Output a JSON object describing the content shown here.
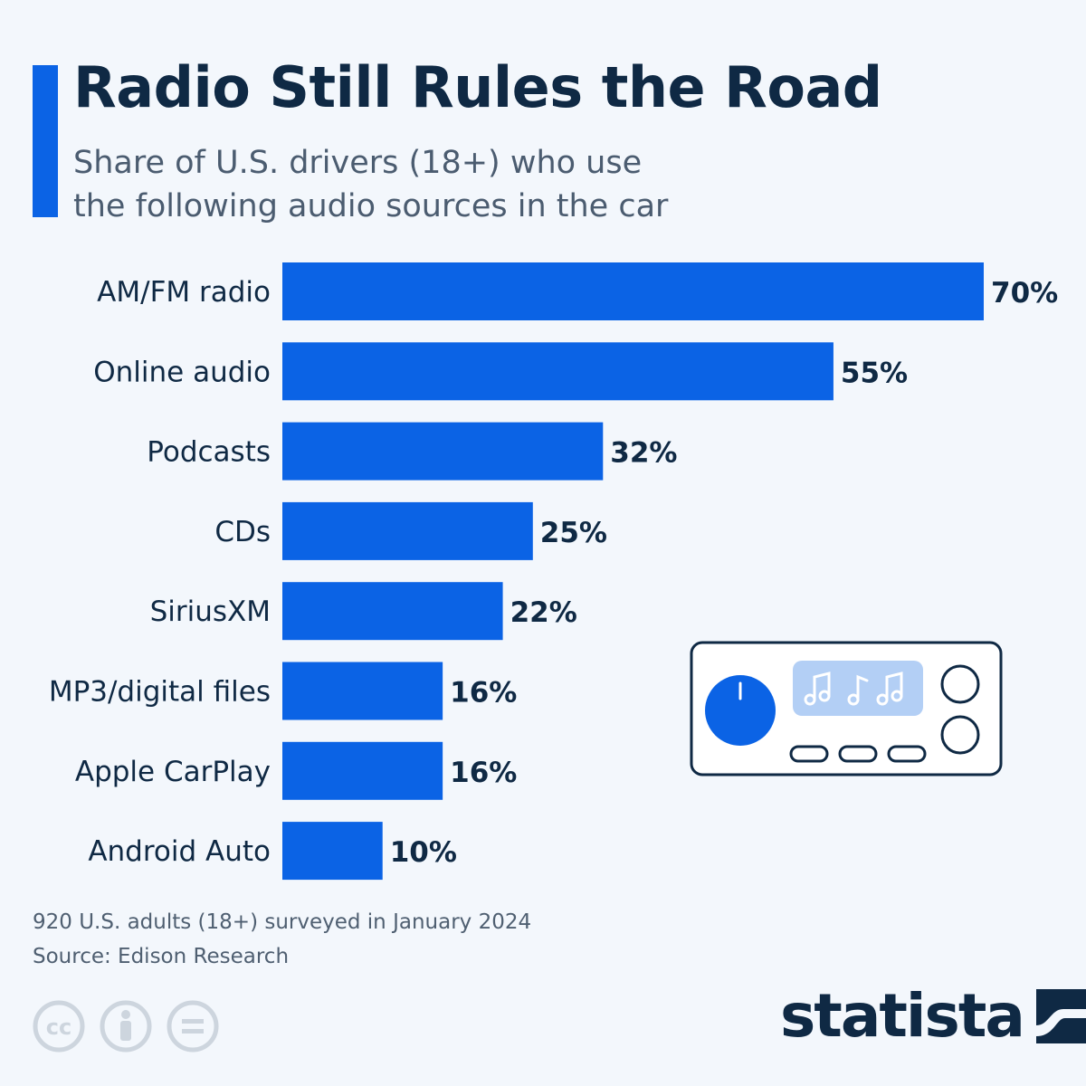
{
  "header": {
    "title": "Radio Still Rules the Road",
    "subtitle_line1": "Share of U.S. drivers (18+) who use",
    "subtitle_line2": "the following audio sources in the car"
  },
  "colors": {
    "accent": "#0b63e5",
    "bar": "#0b63e5",
    "text_dark": "#0f2944",
    "background": "#f3f7fc"
  },
  "chart_data": {
    "type": "bar",
    "orientation": "horizontal",
    "categories": [
      "AM/FM radio",
      "Online audio",
      "Podcasts",
      "CDs",
      "SiriusXM",
      "MP3/digital files",
      "Apple CarPlay",
      "Android Auto"
    ],
    "values": [
      70,
      55,
      32,
      25,
      22,
      16,
      16,
      10
    ],
    "value_labels": [
      "70%",
      "55%",
      "32%",
      "25%",
      "22%",
      "16%",
      "16%",
      "10%"
    ],
    "title": "Radio Still Rules the Road",
    "xlim": [
      0,
      70
    ],
    "grid": false,
    "legend": "none"
  },
  "illustration": {
    "name": "car-radio",
    "icons": [
      "volume-knob-icon",
      "music-notes-icon",
      "round-button-icon",
      "preset-button-icon"
    ]
  },
  "footer": {
    "note": "920 U.S. adults (18+) surveyed in January 2024",
    "source": "Source: Edison Research",
    "license_icons": [
      "cc-icon",
      "attribution-icon",
      "no-derivatives-icon"
    ],
    "brand": "statista"
  }
}
